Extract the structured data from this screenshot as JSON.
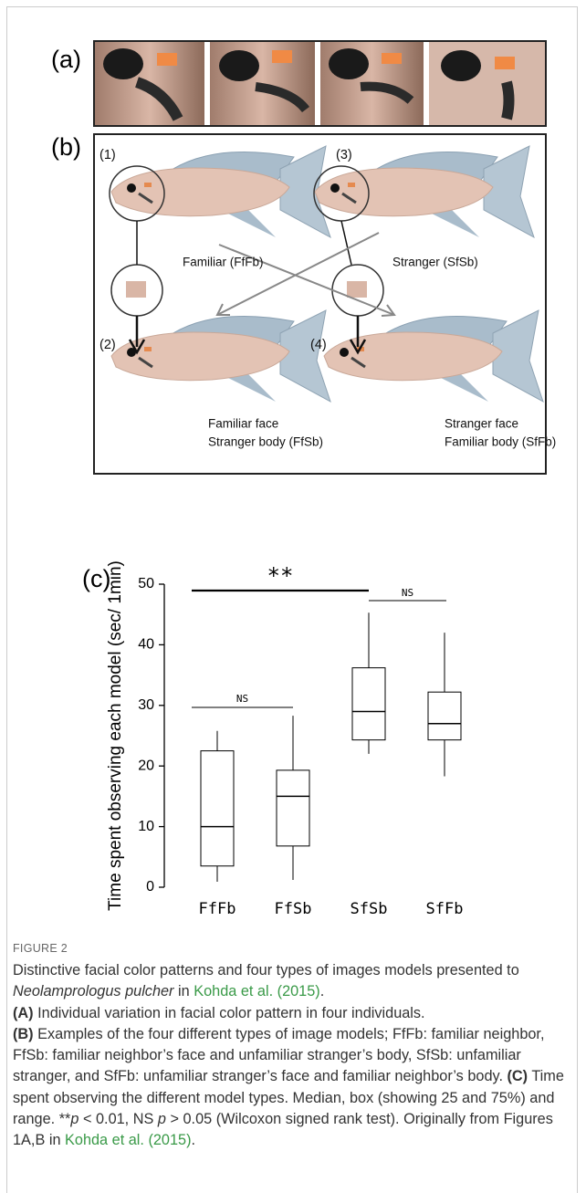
{
  "panels": {
    "a": {
      "label": "(a)"
    },
    "b": {
      "label": "(b)",
      "n1": "(1)",
      "n2": "(2)",
      "n3": "(3)",
      "n4": "(4)",
      "familiar": "Familiar (FfFb)",
      "stranger": "Stranger (SfSb)",
      "ffsb_1": "Familiar face",
      "ffsb_2": "Stranger body (FfSb)",
      "sffb_1": "Stranger face",
      "sffb_2": "Familiar body (SfFb)"
    }
  },
  "chart_data": {
    "type": "box",
    "panel_label": "(c)",
    "ylabel": "Time spent observing each model (sec/ 1min)",
    "categories": [
      "FfFb",
      "FfSb",
      "SfSb",
      "SfFb"
    ],
    "min": [
      0.9,
      1.2,
      22,
      18.3
    ],
    "q1": [
      3.5,
      6.8,
      24.3,
      24.3
    ],
    "median": [
      10,
      15,
      29,
      27
    ],
    "q3": [
      22.5,
      19.3,
      36.2,
      32.2
    ],
    "max": [
      25.8,
      28.3,
      45.3,
      42
    ],
    "color": "#000000",
    "ylim": [
      0,
      50
    ],
    "yticks": [
      0,
      10,
      20,
      30,
      40,
      50
    ],
    "grid": false,
    "annotations": [
      {
        "text": "**"
      },
      {
        "text": "NS"
      },
      {
        "text": "NS"
      }
    ]
  },
  "caption": {
    "label": "FIGURE 2",
    "paragraphs": [
      [
        {
          "text": "Distinctive facial color patterns and four types of images models presented to "
        },
        {
          "text": "Neolamprologus pulcher",
          "style": "italic"
        },
        {
          "text": " in "
        },
        {
          "text": "Kohda et al. (2015)",
          "style": "link"
        },
        {
          "text": "."
        }
      ],
      [
        {
          "text": "(A)",
          "style": "bold"
        },
        {
          "text": " Individual variation in facial color pattern in four individuals."
        }
      ],
      [
        {
          "text": "(B)",
          "style": "bold"
        },
        {
          "text": " Examples of the four different types of image models; FfFb: familiar neighbor, FfSb: familiar neighbor’s face and unfamiliar stranger’s body, SfSb: unfamiliar stranger, and SfFb: unfamiliar stranger’s face and familiar neighbor’s body. "
        },
        {
          "text": "(C)",
          "style": "bold"
        },
        {
          "text": " Time spent observing the different model types. Median, box (showing 25 and 75%) and range. **"
        },
        {
          "text": "p",
          "style": "italic"
        },
        {
          "text": " < 0.01, NS "
        },
        {
          "text": "p",
          "style": "italic"
        },
        {
          "text": " > 0.05 (Wilcoxon signed rank test). Originally from Figures 1A,B in "
        },
        {
          "text": "Kohda et al. (2015)",
          "style": "link"
        },
        {
          "text": "."
        }
      ]
    ]
  }
}
